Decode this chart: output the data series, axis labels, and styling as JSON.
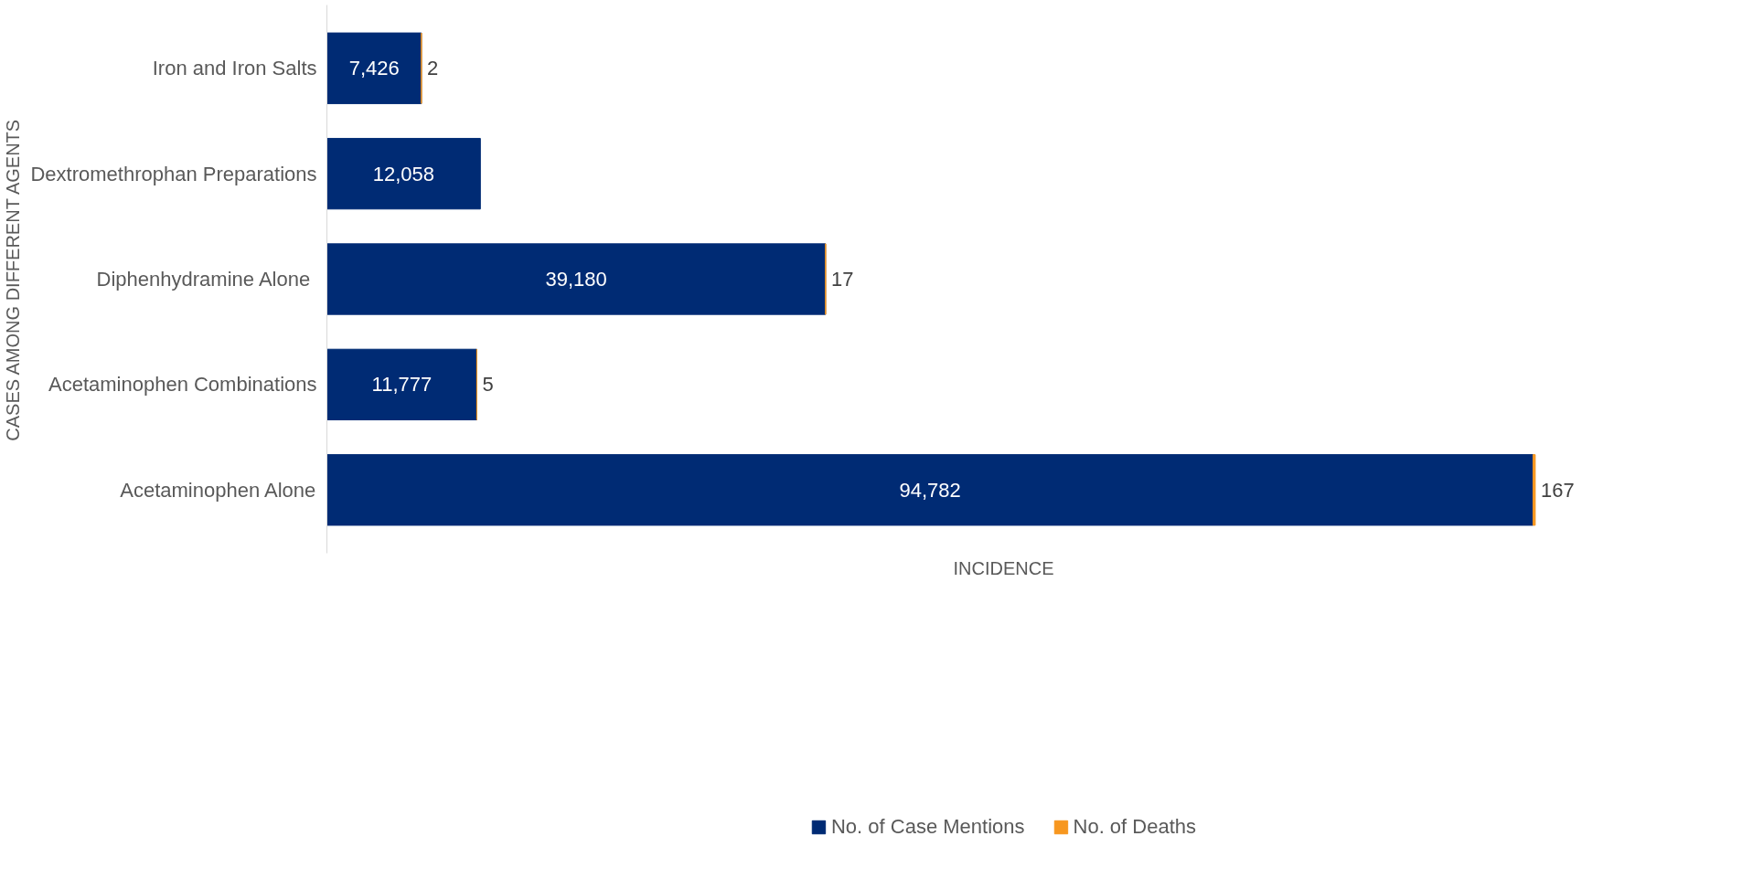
{
  "chart_data": {
    "type": "bar",
    "orientation": "horizontal",
    "stacked": true,
    "tick_labels": "y",
    "legend": "bottom",
    "xlabel": "INCIDENCE",
    "ylabel": "CASES AMONG DIFFERENT AGENTS",
    "categories": [
      "Iron and Iron Salts",
      "Dextromethrophan Preparations",
      "Diphenhydramine Alone ",
      "Acetaminophen Combinations",
      "Acetaminophen Alone"
    ],
    "series": [
      {
        "name": "No. of Case Mentions",
        "color": "#002b74",
        "values": [
          7426,
          12058,
          39180,
          11777,
          94782
        ],
        "value_labels": [
          "7,426",
          "12,058",
          "39,180",
          "11,777",
          "94,782"
        ]
      },
      {
        "name": "No. of Deaths",
        "color": "#f7971f",
        "values": [
          2,
          null,
          17,
          5,
          167
        ],
        "value_labels": [
          "2",
          null,
          "17",
          "5",
          "167"
        ]
      }
    ]
  }
}
